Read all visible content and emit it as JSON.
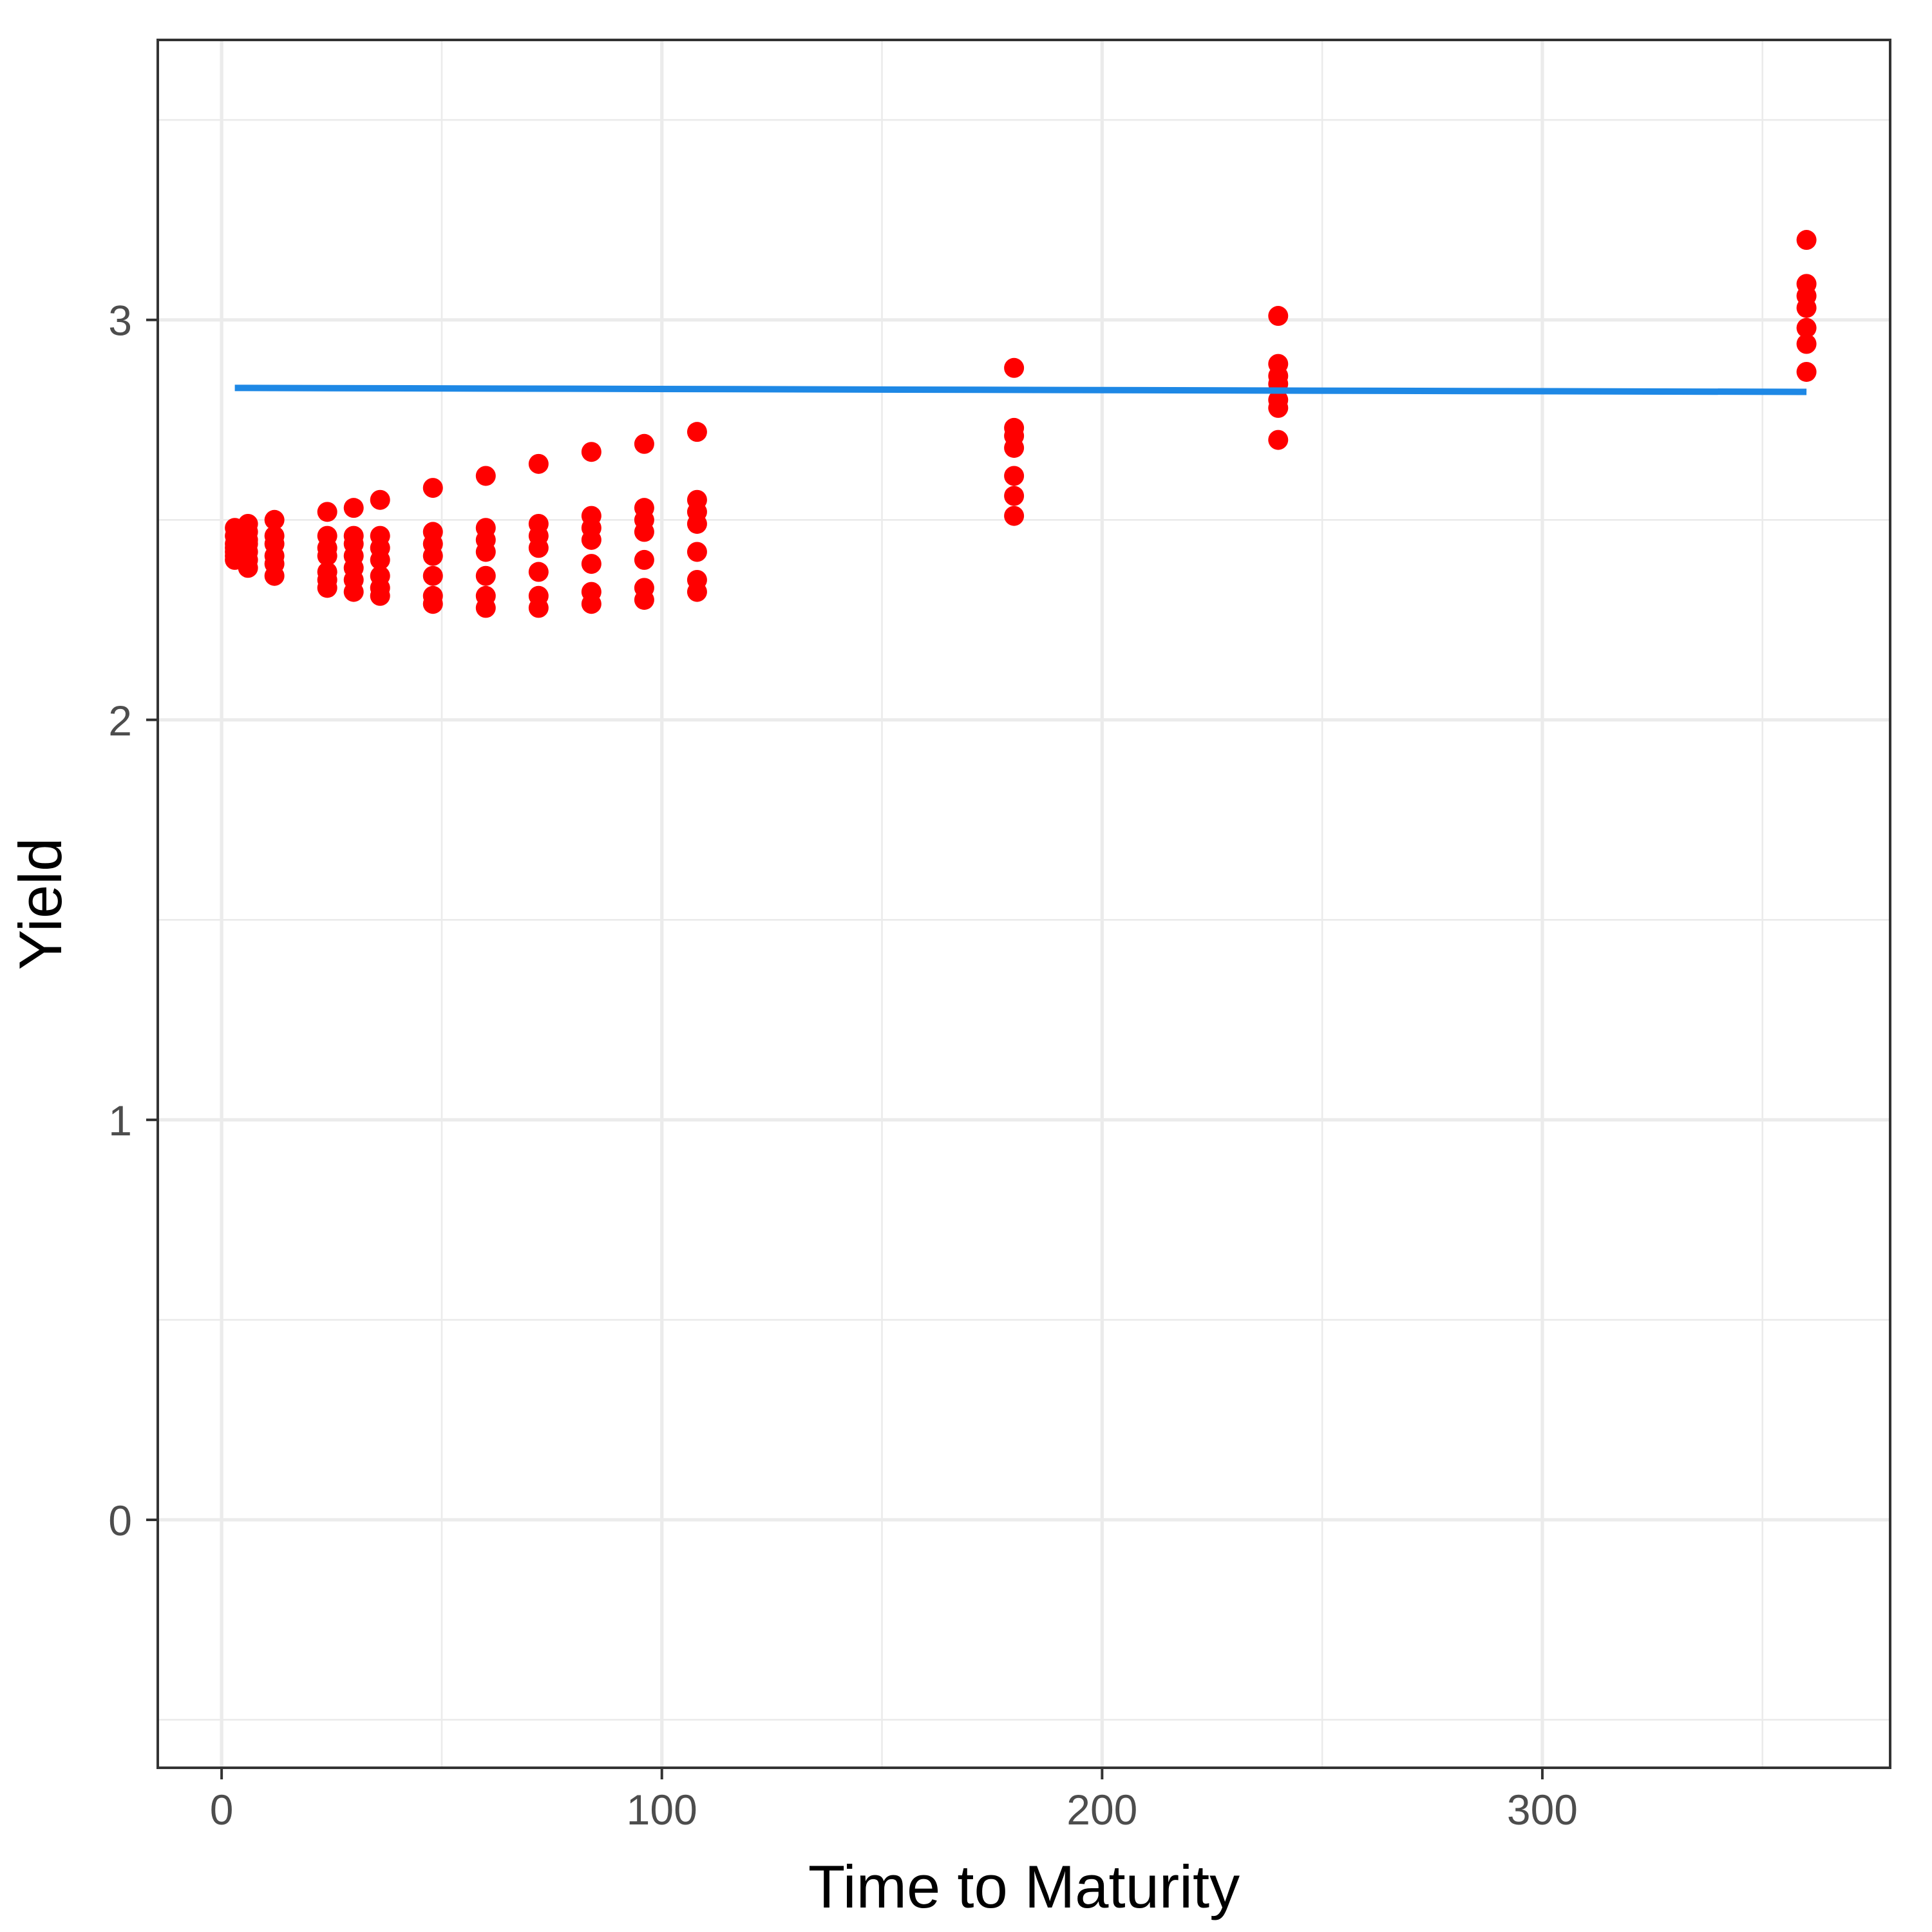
{
  "chart_data": {
    "type": "scatter",
    "title": "",
    "xlabel": "Time to Maturity",
    "ylabel": "Yield",
    "xlim": [
      -14.5,
      379
    ],
    "ylim": [
      -0.62,
      3.7
    ],
    "x_ticks": [
      0,
      100,
      200,
      300
    ],
    "x_tick_labels": [
      "0",
      "100",
      "200",
      "300"
    ],
    "y_ticks": [
      0,
      1,
      2,
      3
    ],
    "y_tick_labels": [
      "0",
      "1",
      "2",
      "3"
    ],
    "x_minor_gridlines": [
      50,
      150,
      250,
      350
    ],
    "y_minor_gridlines": [
      -0.5,
      0.5,
      1.5,
      2.5,
      3.5
    ],
    "grid": true,
    "legend": "none",
    "colors": {
      "points": "#ff0000",
      "fit_line": "#1e88e5",
      "grid": "#ebebeb",
      "panel_border": "#333333",
      "axis_text": "#4d4d4d"
    },
    "series": [
      {
        "type": "scatter",
        "points": [
          [
            3,
            2.48
          ],
          [
            3,
            2.46
          ],
          [
            3,
            2.44
          ],
          [
            3,
            2.43
          ],
          [
            3,
            2.42
          ],
          [
            3,
            2.41
          ],
          [
            3,
            2.4
          ],
          [
            6,
            2.49
          ],
          [
            6,
            2.47
          ],
          [
            6,
            2.45
          ],
          [
            6,
            2.44
          ],
          [
            6,
            2.42
          ],
          [
            6,
            2.4
          ],
          [
            6,
            2.38
          ],
          [
            12,
            2.5
          ],
          [
            12,
            2.46
          ],
          [
            12,
            2.44
          ],
          [
            12,
            2.41
          ],
          [
            12,
            2.39
          ],
          [
            12,
            2.36
          ],
          [
            24,
            2.52
          ],
          [
            24,
            2.46
          ],
          [
            24,
            2.43
          ],
          [
            24,
            2.41
          ],
          [
            24,
            2.37
          ],
          [
            24,
            2.35
          ],
          [
            24,
            2.33
          ],
          [
            30,
            2.53
          ],
          [
            30,
            2.46
          ],
          [
            30,
            2.44
          ],
          [
            30,
            2.41
          ],
          [
            30,
            2.38
          ],
          [
            30,
            2.35
          ],
          [
            30,
            2.32
          ],
          [
            36,
            2.55
          ],
          [
            36,
            2.46
          ],
          [
            36,
            2.43
          ],
          [
            36,
            2.4
          ],
          [
            36,
            2.36
          ],
          [
            36,
            2.33
          ],
          [
            36,
            2.31
          ],
          [
            48,
            2.58
          ],
          [
            48,
            2.47
          ],
          [
            48,
            2.44
          ],
          [
            48,
            2.41
          ],
          [
            48,
            2.36
          ],
          [
            48,
            2.31
          ],
          [
            48,
            2.29
          ],
          [
            60,
            2.61
          ],
          [
            60,
            2.48
          ],
          [
            60,
            2.45
          ],
          [
            60,
            2.42
          ],
          [
            60,
            2.36
          ],
          [
            60,
            2.31
          ],
          [
            60,
            2.28
          ],
          [
            72,
            2.64
          ],
          [
            72,
            2.49
          ],
          [
            72,
            2.46
          ],
          [
            72,
            2.43
          ],
          [
            72,
            2.37
          ],
          [
            72,
            2.31
          ],
          [
            72,
            2.28
          ],
          [
            84,
            2.67
          ],
          [
            84,
            2.51
          ],
          [
            84,
            2.48
          ],
          [
            84,
            2.45
          ],
          [
            84,
            2.39
          ],
          [
            84,
            2.32
          ],
          [
            84,
            2.29
          ],
          [
            96,
            2.69
          ],
          [
            96,
            2.53
          ],
          [
            96,
            2.5
          ],
          [
            96,
            2.47
          ],
          [
            96,
            2.4
          ],
          [
            96,
            2.33
          ],
          [
            96,
            2.3
          ],
          [
            108,
            2.72
          ],
          [
            108,
            2.55
          ],
          [
            108,
            2.52
          ],
          [
            108,
            2.49
          ],
          [
            108,
            2.42
          ],
          [
            108,
            2.35
          ],
          [
            108,
            2.32
          ],
          [
            180,
            2.88
          ],
          [
            180,
            2.73
          ],
          [
            180,
            2.71
          ],
          [
            180,
            2.68
          ],
          [
            180,
            2.61
          ],
          [
            180,
            2.56
          ],
          [
            180,
            2.51
          ],
          [
            240,
            3.01
          ],
          [
            240,
            2.89
          ],
          [
            240,
            2.86
          ],
          [
            240,
            2.84
          ],
          [
            240,
            2.8
          ],
          [
            240,
            2.78
          ],
          [
            240,
            2.7
          ],
          [
            360,
            3.2
          ],
          [
            360,
            3.09
          ],
          [
            360,
            3.06
          ],
          [
            360,
            3.03
          ],
          [
            360,
            2.98
          ],
          [
            360,
            2.94
          ],
          [
            360,
            2.87
          ]
        ]
      },
      {
        "type": "line",
        "points": [
          [
            3,
            2.83
          ],
          [
            360,
            2.82
          ]
        ]
      }
    ]
  }
}
